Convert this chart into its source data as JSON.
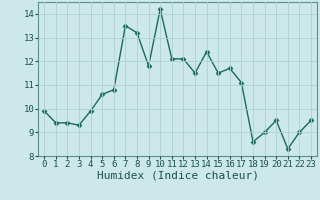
{
  "x": [
    0,
    1,
    2,
    3,
    4,
    5,
    6,
    7,
    8,
    9,
    10,
    11,
    12,
    13,
    14,
    15,
    16,
    17,
    18,
    19,
    20,
    21,
    22,
    23
  ],
  "y": [
    9.9,
    9.4,
    9.4,
    9.3,
    9.9,
    10.6,
    10.8,
    13.5,
    13.2,
    11.8,
    14.2,
    12.1,
    12.1,
    11.5,
    12.4,
    11.5,
    11.7,
    11.1,
    8.6,
    9.0,
    9.5,
    8.3,
    9.0,
    9.5
  ],
  "line_color": "#1a6b5a",
  "marker": "D",
  "marker_size": 2.5,
  "bg_color": "#cce8e8",
  "grid_color": "#b0d0d0",
  "xlabel": "Humidex (Indice chaleur)",
  "ylim": [
    8,
    14.5
  ],
  "xlim": [
    -0.5,
    23.5
  ],
  "yticks": [
    8,
    9,
    10,
    11,
    12,
    13,
    14
  ],
  "xticks": [
    0,
    1,
    2,
    3,
    4,
    5,
    6,
    7,
    8,
    9,
    10,
    11,
    12,
    13,
    14,
    15,
    16,
    17,
    18,
    19,
    20,
    21,
    22,
    23
  ],
  "tick_fontsize": 6.5,
  "xlabel_fontsize": 8,
  "linewidth": 1.0
}
